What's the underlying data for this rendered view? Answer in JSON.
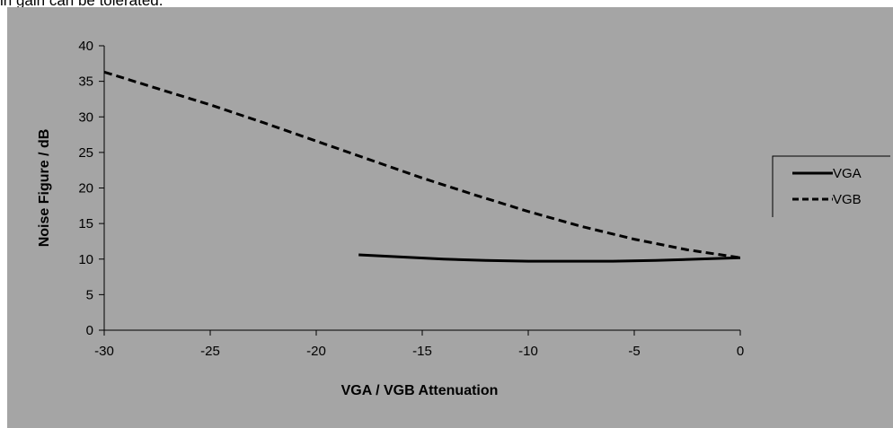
{
  "caption_fragment": "in gain can be tolerated.",
  "colors": {
    "plot_background": "#a5a5a5",
    "series_color": "#000000"
  },
  "chart_data": {
    "type": "line",
    "title": "",
    "xlabel": "VGA / VGB Attenuation",
    "ylabel": "Noise Figure / dB",
    "xlim": [
      -30,
      0
    ],
    "ylim": [
      0,
      40
    ],
    "xticks": [
      -30,
      -25,
      -20,
      -15,
      -10,
      -5,
      0
    ],
    "yticks": [
      0,
      5,
      10,
      15,
      20,
      25,
      30,
      35,
      40
    ],
    "grid": false,
    "legend_position": "right",
    "series": [
      {
        "name": "VGA",
        "style": "solid",
        "x": [
          -18,
          -16,
          -14,
          -12,
          -10,
          -8,
          -6,
          -4,
          -2,
          0
        ],
        "y": [
          10.6,
          10.3,
          10.0,
          9.8,
          9.7,
          9.7,
          9.7,
          9.8,
          10.0,
          10.2
        ]
      },
      {
        "name": "VGB",
        "style": "dashed",
        "x": [
          -30,
          -27.5,
          -25,
          -22.5,
          -20,
          -17.5,
          -15,
          -12.5,
          -10,
          -7.5,
          -5,
          -2.5,
          0
        ],
        "y": [
          36.3,
          34.0,
          31.7,
          29.2,
          26.6,
          24.0,
          21.4,
          19.0,
          16.7,
          14.6,
          12.8,
          11.3,
          10.2
        ]
      }
    ]
  }
}
